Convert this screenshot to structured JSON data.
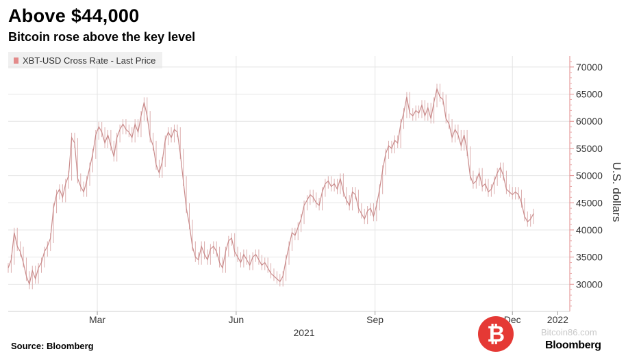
{
  "chart_data": {
    "type": "line",
    "title": "Above $44,000",
    "subtitle": "Bitcoin rose above the key level",
    "series_name": "XBT-USD Cross Rate - Last Price",
    "ylabel": "U.S. dollars",
    "ylim": [
      25000,
      72000
    ],
    "yticks": [
      30000,
      35000,
      40000,
      45000,
      50000,
      55000,
      60000,
      65000,
      70000
    ],
    "ytick_labels": [
      "30000",
      "35000",
      "40000",
      "45000",
      "50000",
      "55000",
      "60000",
      "65000",
      "70000"
    ],
    "xticks": [
      {
        "label": "Mar",
        "day": 59
      },
      {
        "label": "Jun",
        "day": 151
      },
      {
        "label": "Sep",
        "day": 243
      },
      {
        "label": "Dec",
        "day": 334
      },
      {
        "label": "2022",
        "day": 364
      }
    ],
    "xgrid_days": [
      59,
      151,
      243,
      334
    ],
    "year_label": "2021",
    "xlim_days": [
      0,
      372
    ],
    "points": [
      [
        0,
        33000
      ],
      [
        2,
        34500
      ],
      [
        4,
        39500
      ],
      [
        6,
        37000
      ],
      [
        8,
        36000
      ],
      [
        10,
        34000
      ],
      [
        12,
        31500
      ],
      [
        14,
        30000
      ],
      [
        16,
        32500
      ],
      [
        18,
        31000
      ],
      [
        20,
        33000
      ],
      [
        22,
        34000
      ],
      [
        24,
        36000
      ],
      [
        26,
        37000
      ],
      [
        28,
        38500
      ],
      [
        30,
        44000
      ],
      [
        32,
        46500
      ],
      [
        34,
        47500
      ],
      [
        36,
        46000
      ],
      [
        38,
        48500
      ],
      [
        40,
        50000
      ],
      [
        42,
        57000
      ],
      [
        44,
        56000
      ],
      [
        46,
        49500
      ],
      [
        48,
        48000
      ],
      [
        50,
        47000
      ],
      [
        52,
        49000
      ],
      [
        54,
        51500
      ],
      [
        56,
        54000
      ],
      [
        58,
        57500
      ],
      [
        60,
        59000
      ],
      [
        62,
        58000
      ],
      [
        64,
        56000
      ],
      [
        66,
        57500
      ],
      [
        68,
        55500
      ],
      [
        70,
        53500
      ],
      [
        72,
        57000
      ],
      [
        74,
        58500
      ],
      [
        76,
        59500
      ],
      [
        78,
        58500
      ],
      [
        80,
        58000
      ],
      [
        82,
        57000
      ],
      [
        84,
        59500
      ],
      [
        86,
        58000
      ],
      [
        88,
        61000
      ],
      [
        90,
        63500
      ],
      [
        92,
        61000
      ],
      [
        94,
        57000
      ],
      [
        96,
        55500
      ],
      [
        98,
        52000
      ],
      [
        100,
        50500
      ],
      [
        102,
        52500
      ],
      [
        104,
        56500
      ],
      [
        106,
        58000
      ],
      [
        108,
        57000
      ],
      [
        110,
        58500
      ],
      [
        112,
        58000
      ],
      [
        114,
        54000
      ],
      [
        116,
        49000
      ],
      [
        118,
        44000
      ],
      [
        120,
        41000
      ],
      [
        122,
        37000
      ],
      [
        124,
        35000
      ],
      [
        126,
        34500
      ],
      [
        128,
        37000
      ],
      [
        130,
        35500
      ],
      [
        132,
        34500
      ],
      [
        134,
        36500
      ],
      [
        136,
        37000
      ],
      [
        138,
        36000
      ],
      [
        140,
        34000
      ],
      [
        142,
        33000
      ],
      [
        144,
        36000
      ],
      [
        146,
        38000
      ],
      [
        148,
        38500
      ],
      [
        150,
        36000
      ],
      [
        152,
        35000
      ],
      [
        154,
        34000
      ],
      [
        156,
        35500
      ],
      [
        158,
        34500
      ],
      [
        160,
        33500
      ],
      [
        162,
        35000
      ],
      [
        164,
        35500
      ],
      [
        166,
        34500
      ],
      [
        168,
        33500
      ],
      [
        170,
        34000
      ],
      [
        172,
        33000
      ],
      [
        174,
        32000
      ],
      [
        176,
        31500
      ],
      [
        178,
        31000
      ],
      [
        180,
        30500
      ],
      [
        182,
        31500
      ],
      [
        184,
        34500
      ],
      [
        186,
        37000
      ],
      [
        188,
        39500
      ],
      [
        190,
        39000
      ],
      [
        192,
        40500
      ],
      [
        194,
        42000
      ],
      [
        196,
        44500
      ],
      [
        198,
        45500
      ],
      [
        200,
        46500
      ],
      [
        202,
        46000
      ],
      [
        204,
        45000
      ],
      [
        206,
        44500
      ],
      [
        208,
        47000
      ],
      [
        210,
        48500
      ],
      [
        212,
        49000
      ],
      [
        214,
        48000
      ],
      [
        216,
        48500
      ],
      [
        218,
        47500
      ],
      [
        220,
        49500
      ],
      [
        222,
        47000
      ],
      [
        224,
        45500
      ],
      [
        226,
        44500
      ],
      [
        228,
        47000
      ],
      [
        230,
        46500
      ],
      [
        232,
        44000
      ],
      [
        234,
        43000
      ],
      [
        236,
        42000
      ],
      [
        238,
        43500
      ],
      [
        240,
        44000
      ],
      [
        242,
        42500
      ],
      [
        244,
        44500
      ],
      [
        246,
        47500
      ],
      [
        248,
        51000
      ],
      [
        250,
        54000
      ],
      [
        252,
        55500
      ],
      [
        254,
        55000
      ],
      [
        256,
        56500
      ],
      [
        258,
        56000
      ],
      [
        260,
        59500
      ],
      [
        262,
        61500
      ],
      [
        264,
        64500
      ],
      [
        266,
        61500
      ],
      [
        268,
        61000
      ],
      [
        270,
        62000
      ],
      [
        272,
        61500
      ],
      [
        274,
        63000
      ],
      [
        276,
        61000
      ],
      [
        278,
        62500
      ],
      [
        280,
        60500
      ],
      [
        282,
        63500
      ],
      [
        284,
        66000
      ],
      [
        286,
        64500
      ],
      [
        288,
        64000
      ],
      [
        290,
        60500
      ],
      [
        292,
        59500
      ],
      [
        294,
        57000
      ],
      [
        296,
        58500
      ],
      [
        298,
        57500
      ],
      [
        300,
        55500
      ],
      [
        302,
        57500
      ],
      [
        304,
        54500
      ],
      [
        306,
        50000
      ],
      [
        308,
        48500
      ],
      [
        310,
        49000
      ],
      [
        312,
        50500
      ],
      [
        314,
        48000
      ],
      [
        316,
        48500
      ],
      [
        318,
        47000
      ],
      [
        320,
        47500
      ],
      [
        322,
        49000
      ],
      [
        324,
        50500
      ],
      [
        326,
        51500
      ],
      [
        328,
        50000
      ],
      [
        330,
        47500
      ],
      [
        332,
        47000
      ],
      [
        334,
        46500
      ],
      [
        336,
        47000
      ],
      [
        338,
        46500
      ],
      [
        340,
        45000
      ],
      [
        342,
        42500
      ],
      [
        344,
        41500
      ],
      [
        346,
        42000
      ],
      [
        348,
        43000
      ]
    ]
  },
  "source": "Source: Bloomberg",
  "brand": "Bloomberg",
  "watermark_text": "Bitcoin86.com"
}
